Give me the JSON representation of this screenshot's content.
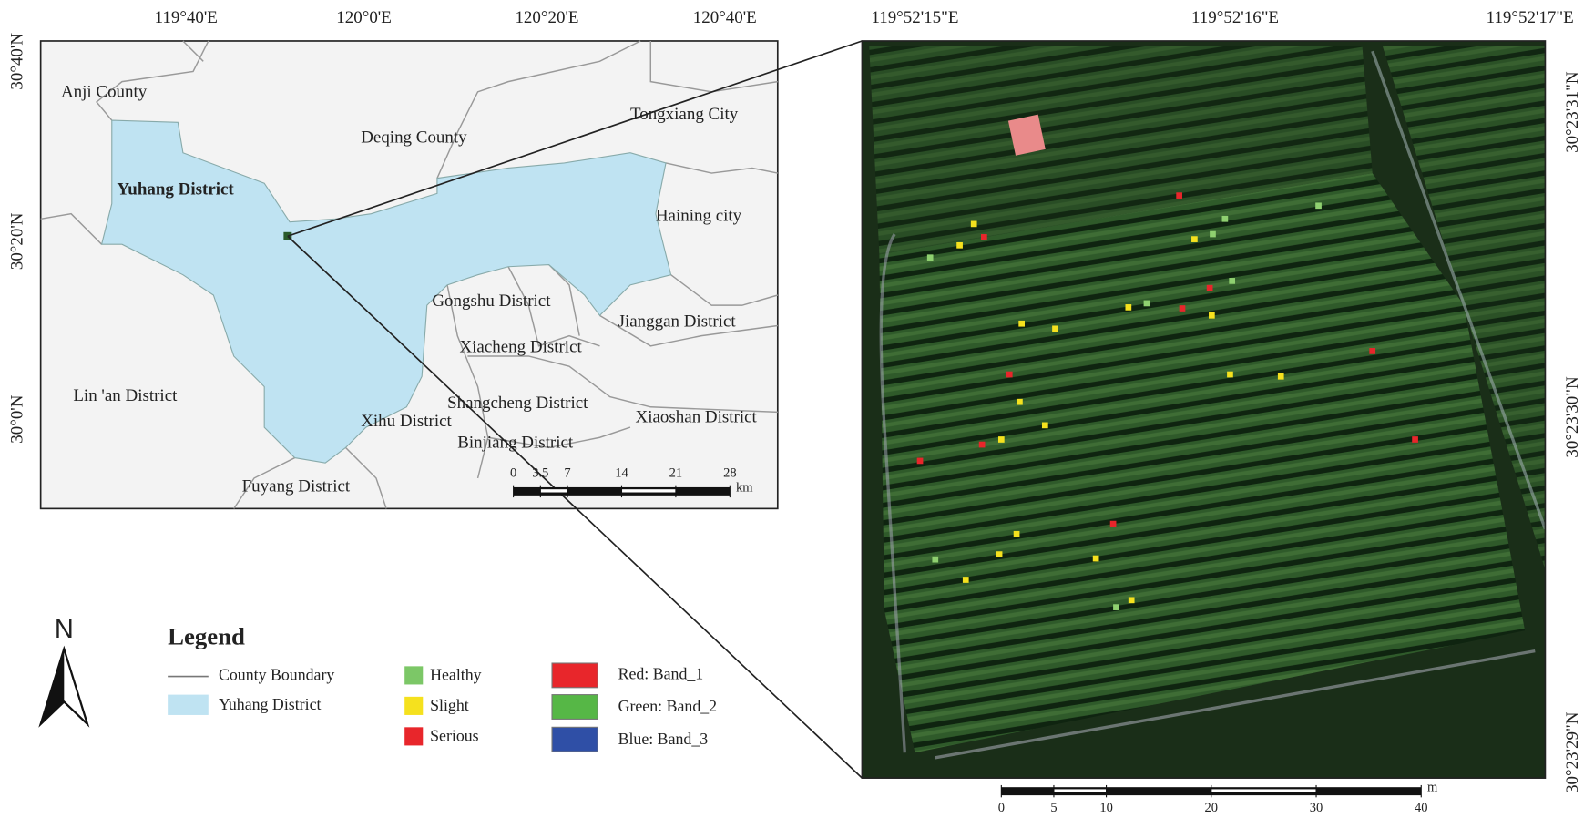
{
  "inset_map": {
    "lon_labels": [
      "119°40'E",
      "120°0'E",
      "120°20'E",
      "120°40'E"
    ],
    "lat_labels": [
      "30°40'N",
      "30°20'N",
      "30°0'N"
    ],
    "place_labels": [
      "Anji County",
      "Deqing County",
      "Tongxiang City",
      "Yuhang District",
      "Haining city",
      "Gongshu District",
      "Jianggan District",
      "Xiacheng District",
      "Lin 'an District",
      "Shangcheng District",
      "Xihu District",
      "Xiaoshan District",
      "Binjiang District",
      "Fuyang District"
    ],
    "scale_bar": {
      "ticks": [
        0,
        3.5,
        7,
        14,
        21,
        28
      ],
      "unit": "km"
    }
  },
  "north_arrow": "N",
  "legend": {
    "title": "Legend",
    "items": [
      "County Boundary",
      "Yuhang District",
      "Healthy",
      "Slight",
      "Serious",
      "Red: Band_1",
      "Green: Band_2",
      "Blue: Band_3"
    ]
  },
  "detail_map": {
    "lon_labels": [
      "119°52'15\"E",
      "119°52'16\"E",
      "119°52'17\"E"
    ],
    "lat_labels": [
      "30°23'31\"N",
      "30°23'30\"N",
      "30°23'29\"N"
    ],
    "scale_bar": {
      "ticks": [
        0,
        5,
        10,
        20,
        30,
        40
      ],
      "unit": "m"
    }
  }
}
